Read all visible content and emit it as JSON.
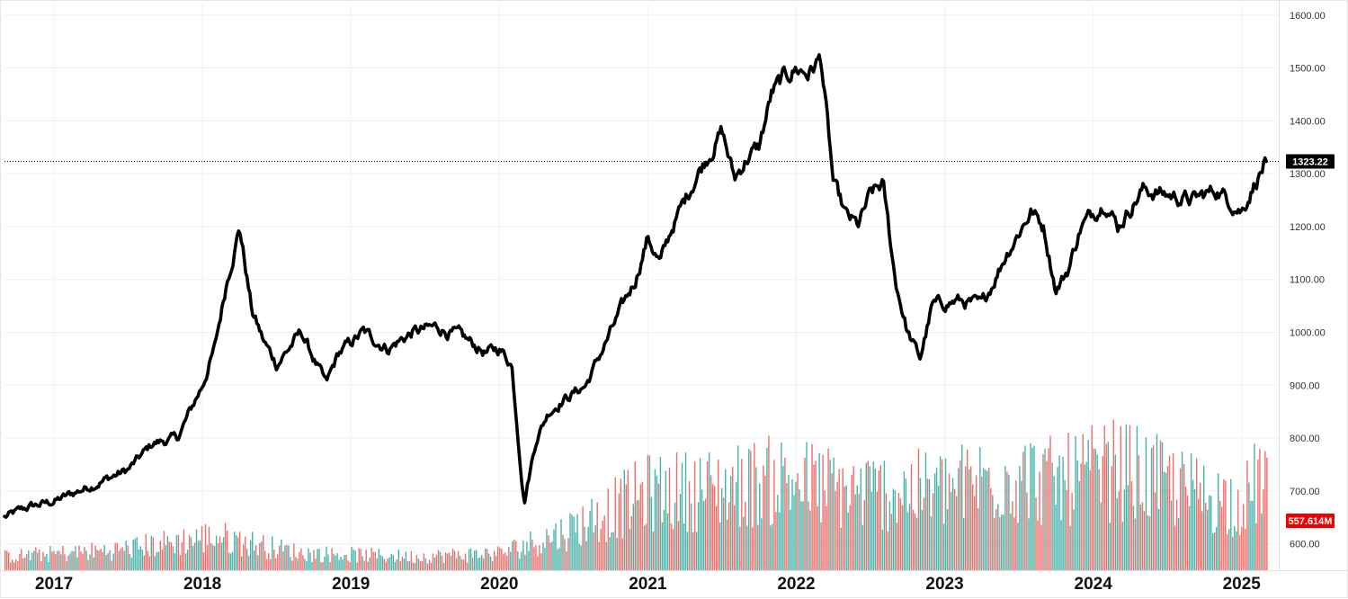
{
  "chart_data": {
    "type": "line",
    "title": "",
    "xlabel": "",
    "ylabel": "",
    "x_range": [
      "2016-09",
      "2025-04"
    ],
    "ylim": [
      550,
      1620
    ],
    "grid": true,
    "legend": "none",
    "x_tick_labels": [
      "2017",
      "2018",
      "2019",
      "2020",
      "2021",
      "2022",
      "2023",
      "2024",
      "2025"
    ],
    "y_tick_labels": [
      "600.00",
      "700.00",
      "800.00",
      "900.00",
      "1000.00",
      "1100.00",
      "1200.00",
      "1300.00",
      "1400.00",
      "1500.00",
      "1600.00"
    ],
    "series": [
      {
        "kind": "price",
        "color": "#000000",
        "x": [
          "2016-09",
          "2016-11",
          "2017-01",
          "2017-03",
          "2017-05",
          "2017-07",
          "2017-09",
          "2017-11",
          "2018-01",
          "2018-02",
          "2018-03",
          "2018-04",
          "2018-05",
          "2018-06",
          "2018-07",
          "2018-09",
          "2018-11",
          "2018-12",
          "2019-02",
          "2019-04",
          "2019-06",
          "2019-08",
          "2019-10",
          "2019-12",
          "2020-01",
          "2020-02",
          "2020-03",
          "2020-04",
          "2020-05",
          "2020-06",
          "2020-08",
          "2020-10",
          "2020-12",
          "2021-01",
          "2021-02",
          "2021-03",
          "2021-05",
          "2021-07",
          "2021-08",
          "2021-09",
          "2021-10",
          "2021-11",
          "2021-12",
          "2022-01",
          "2022-02",
          "2022-03",
          "2022-04",
          "2022-05",
          "2022-06",
          "2022-07",
          "2022-08",
          "2022-09",
          "2022-10",
          "2022-11",
          "2022-12",
          "2023-02",
          "2023-04",
          "2023-06",
          "2023-08",
          "2023-09",
          "2023-10",
          "2023-11",
          "2023-12",
          "2024-02",
          "2024-03",
          "2024-05",
          "2024-07",
          "2024-09",
          "2024-11",
          "2025-01",
          "2025-02",
          "2025-03"
        ],
        "values": [
          650,
          670,
          680,
          700,
          720,
          740,
          790,
          800,
          900,
          970,
          1100,
          1200,
          1040,
          980,
          940,
          1000,
          900,
          960,
          1000,
          970,
          1000,
          1010,
          990,
          960,
          970,
          940,
          680,
          800,
          850,
          870,
          900,
          1000,
          1100,
          1180,
          1130,
          1200,
          1300,
          1380,
          1290,
          1330,
          1350,
          1450,
          1480,
          1500,
          1490,
          1520,
          1280,
          1220,
          1200,
          1260,
          1280,
          1100,
          1000,
          950,
          1050,
          1060,
          1050,
          1150,
          1230,
          1200,
          1080,
          1120,
          1200,
          1250,
          1200,
          1270,
          1260,
          1250,
          1270,
          1230,
          1280,
          1323.22
        ]
      },
      {
        "kind": "volume",
        "colors": [
          "#26a69a",
          "#ef5350"
        ],
        "x": [
          "2016-09",
          "2017-06",
          "2018-02",
          "2018-09",
          "2019-06",
          "2020-01",
          "2020-06",
          "2021-01",
          "2021-06",
          "2021-12",
          "2022-06",
          "2023-01",
          "2023-06",
          "2023-10",
          "2024-03",
          "2024-10",
          "2025-01",
          "2025-03"
        ],
        "values": [
          20,
          30,
          50,
          25,
          20,
          25,
          55,
          115,
          120,
          135,
          115,
          120,
          140,
          130,
          150,
          110,
          100,
          150
        ]
      }
    ],
    "last_price": "1323.22",
    "last_volume": "557.614M",
    "last_price_color": "#000000",
    "last_volume_color": "#f00000"
  }
}
